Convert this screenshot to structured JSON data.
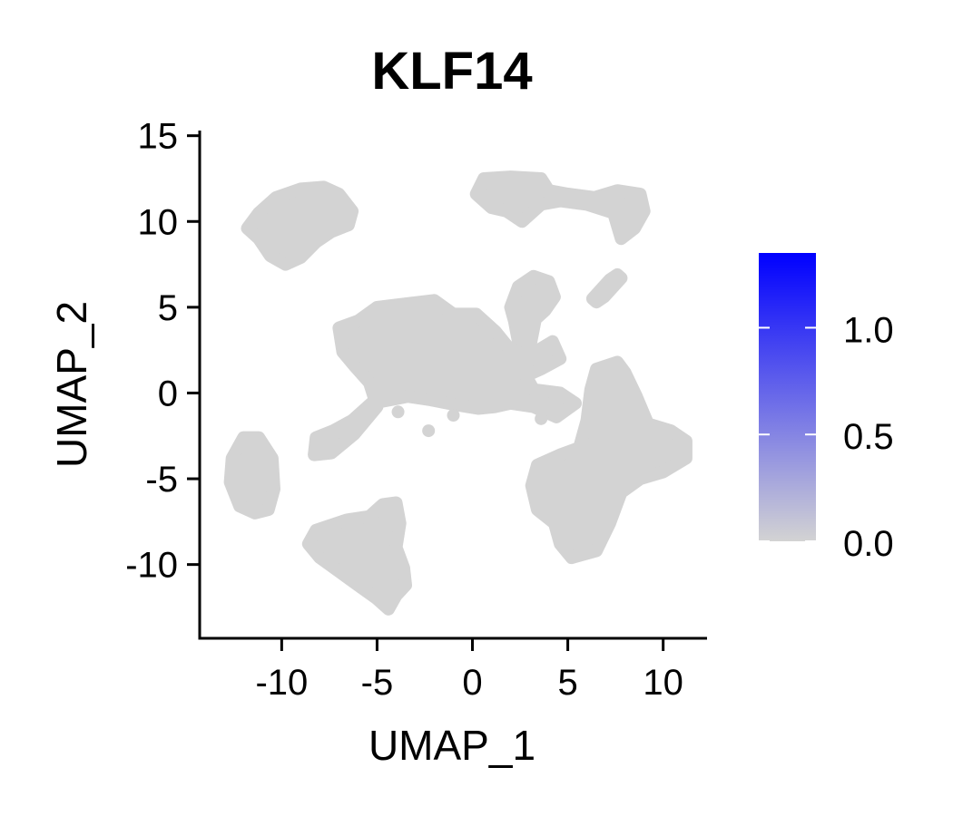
{
  "chart_data": {
    "type": "scatter",
    "title": "KLF14",
    "xlabel": "UMAP_1",
    "ylabel": "UMAP_2",
    "xlim": [
      -14.3,
      12.3
    ],
    "ylim": [
      -14.3,
      15.3
    ],
    "x_ticks": [
      -10,
      -5,
      0,
      5,
      10
    ],
    "x_tick_labels": [
      "-10",
      "-5",
      "0",
      "5",
      "10"
    ],
    "y_ticks": [
      -10,
      -5,
      0,
      5,
      10,
      15
    ],
    "y_tick_labels": [
      "-10",
      "-5",
      "0",
      "5",
      "10",
      "15"
    ],
    "point_color": "#d3d3d3",
    "grid": false,
    "legend": {
      "type": "colorbar",
      "placement": "right",
      "low_color": "#d3d3d3",
      "high_color": "#0000ff",
      "range": [
        0,
        1.35
      ],
      "ticks": [
        0.0,
        0.5,
        1.0
      ],
      "tick_labels": [
        "0.0",
        "0.5",
        "1.0"
      ]
    },
    "clusters": [
      {
        "name": "cluster-top-left",
        "outline": [
          [
            -11.2,
            9.0
          ],
          [
            -11.8,
            9.6
          ],
          [
            -11.2,
            10.5
          ],
          [
            -10.3,
            11.4
          ],
          [
            -9.0,
            11.9
          ],
          [
            -7.8,
            12.0
          ],
          [
            -7.0,
            11.6
          ],
          [
            -6.3,
            10.6
          ],
          [
            -6.5,
            9.8
          ],
          [
            -7.4,
            9.4
          ],
          [
            -8.2,
            8.8
          ],
          [
            -9.0,
            7.9
          ],
          [
            -9.8,
            7.5
          ],
          [
            -10.6,
            8.0
          ]
        ]
      },
      {
        "name": "cluster-top-right",
        "outline": [
          [
            0.2,
            11.6
          ],
          [
            0.6,
            12.5
          ],
          [
            2.0,
            12.6
          ],
          [
            3.6,
            12.5
          ],
          [
            4.0,
            11.8
          ],
          [
            5.0,
            11.6
          ],
          [
            6.4,
            11.4
          ],
          [
            7.6,
            11.8
          ],
          [
            8.8,
            11.6
          ],
          [
            9.0,
            10.6
          ],
          [
            8.5,
            9.6
          ],
          [
            7.8,
            9.0
          ],
          [
            7.4,
            10.5
          ],
          [
            6.0,
            11.0
          ],
          [
            4.6,
            11.2
          ],
          [
            3.6,
            11.0
          ],
          [
            2.6,
            10.0
          ],
          [
            1.8,
            10.6
          ],
          [
            1.0,
            10.8
          ]
        ]
      },
      {
        "name": "cluster-small-diagonal",
        "outline": [
          [
            6.3,
            5.5
          ],
          [
            7.2,
            6.6
          ],
          [
            7.6,
            6.9
          ],
          [
            7.8,
            6.7
          ],
          [
            6.9,
            5.6
          ],
          [
            6.5,
            5.3
          ]
        ]
      },
      {
        "name": "cluster-mid-upper",
        "outline": [
          [
            2.0,
            5.0
          ],
          [
            2.4,
            6.2
          ],
          [
            3.2,
            6.8
          ],
          [
            4.0,
            6.5
          ],
          [
            4.3,
            5.6
          ],
          [
            3.8,
            4.8
          ],
          [
            3.3,
            4.3
          ],
          [
            3.0,
            2.6
          ],
          [
            2.4,
            3.0
          ],
          [
            2.2,
            4.2
          ]
        ]
      },
      {
        "name": "cluster-central",
        "outline": [
          [
            -7.0,
            3.8
          ],
          [
            -6.0,
            4.2
          ],
          [
            -5.0,
            5.0
          ],
          [
            -3.5,
            5.2
          ],
          [
            -2.0,
            5.4
          ],
          [
            -1.0,
            4.6
          ],
          [
            0.2,
            4.6
          ],
          [
            1.2,
            3.6
          ],
          [
            2.0,
            2.5
          ],
          [
            3.0,
            2.2
          ],
          [
            4.2,
            3.0
          ],
          [
            4.6,
            2.0
          ],
          [
            3.6,
            1.4
          ],
          [
            2.8,
            1.0
          ],
          [
            3.2,
            0.2
          ],
          [
            4.6,
            0.0
          ],
          [
            5.4,
            -0.6
          ],
          [
            4.4,
            -1.4
          ],
          [
            3.2,
            -0.8
          ],
          [
            2.0,
            -0.6
          ],
          [
            1.2,
            -0.8
          ],
          [
            0.3,
            -0.9
          ],
          [
            -0.8,
            -0.7
          ],
          [
            -2.2,
            -0.4
          ],
          [
            -3.4,
            -0.2
          ],
          [
            -4.3,
            -0.4
          ],
          [
            -5.3,
            -0.6
          ],
          [
            -6.3,
            -1.6
          ],
          [
            -7.3,
            -2.2
          ],
          [
            -8.2,
            -2.6
          ],
          [
            -8.3,
            -3.6
          ],
          [
            -7.4,
            -3.5
          ],
          [
            -6.2,
            -2.4
          ],
          [
            -5.0,
            -0.8
          ],
          [
            -5.4,
            0.6
          ],
          [
            -6.2,
            1.6
          ],
          [
            -6.8,
            2.4
          ]
        ]
      },
      {
        "name": "cluster-right-large",
        "outline": [
          [
            6.5,
            1.4
          ],
          [
            7.6,
            1.8
          ],
          [
            8.0,
            1.2
          ],
          [
            8.6,
            -0.2
          ],
          [
            9.2,
            -1.8
          ],
          [
            10.4,
            -2.2
          ],
          [
            11.2,
            -2.8
          ],
          [
            11.2,
            -3.8
          ],
          [
            10.0,
            -4.6
          ],
          [
            8.8,
            -5.0
          ],
          [
            7.8,
            -5.8
          ],
          [
            7.2,
            -7.6
          ],
          [
            6.5,
            -9.2
          ],
          [
            5.2,
            -9.6
          ],
          [
            4.6,
            -8.8
          ],
          [
            4.3,
            -7.6
          ],
          [
            3.4,
            -6.8
          ],
          [
            3.1,
            -5.4
          ],
          [
            3.4,
            -4.2
          ],
          [
            4.6,
            -3.6
          ],
          [
            5.6,
            -3.2
          ],
          [
            6.0,
            -1.6
          ],
          [
            6.2,
            0.2
          ]
        ]
      },
      {
        "name": "cluster-left",
        "outline": [
          [
            -12.0,
            -2.6
          ],
          [
            -11.2,
            -2.6
          ],
          [
            -10.5,
            -3.8
          ],
          [
            -10.4,
            -5.6
          ],
          [
            -10.7,
            -6.8
          ],
          [
            -11.4,
            -7.0
          ],
          [
            -12.2,
            -6.6
          ],
          [
            -12.7,
            -5.2
          ],
          [
            -12.6,
            -3.8
          ]
        ]
      },
      {
        "name": "cluster-bottom",
        "outline": [
          [
            -8.2,
            -8.0
          ],
          [
            -6.6,
            -7.4
          ],
          [
            -5.4,
            -7.2
          ],
          [
            -4.7,
            -6.5
          ],
          [
            -4.0,
            -6.4
          ],
          [
            -3.8,
            -7.6
          ],
          [
            -4.0,
            -9.0
          ],
          [
            -3.6,
            -10.2
          ],
          [
            -3.5,
            -11.2
          ],
          [
            -4.0,
            -11.8
          ],
          [
            -4.4,
            -12.6
          ],
          [
            -5.0,
            -12.0
          ],
          [
            -6.0,
            -11.2
          ],
          [
            -7.0,
            -10.4
          ],
          [
            -8.0,
            -9.6
          ],
          [
            -8.6,
            -8.8
          ]
        ]
      }
    ],
    "stray_points": [
      [
        -2.3,
        -2.2
      ],
      [
        -3.9,
        -1.1
      ],
      [
        -1.0,
        -1.3
      ],
      [
        3.6,
        -1.5
      ]
    ]
  }
}
